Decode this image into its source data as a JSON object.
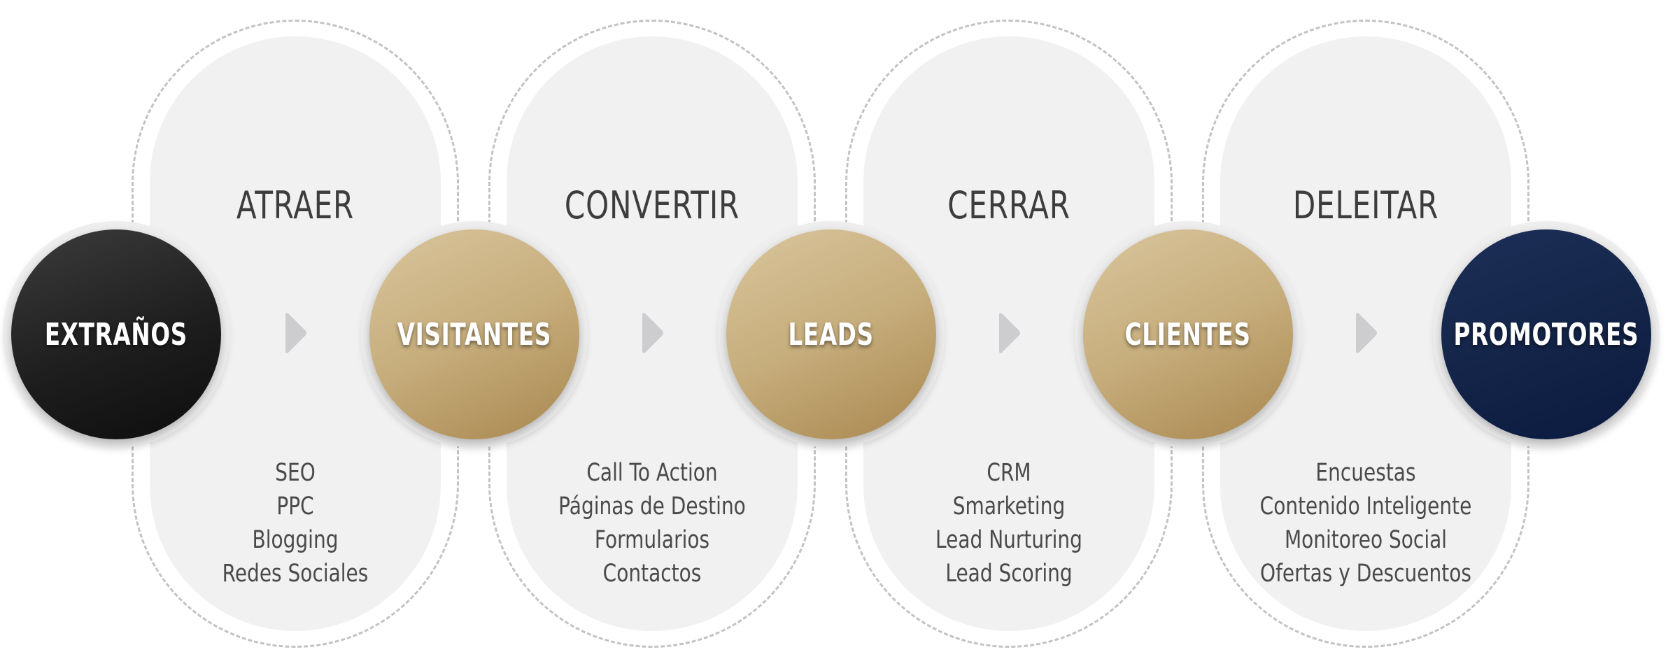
{
  "stages": [
    {
      "title": "ATRAER",
      "tactics": [
        "SEO",
        "PPC",
        "Blogging",
        "Redes Sociales"
      ]
    },
    {
      "title": "CONVERTIR",
      "tactics": [
        "Call To Action",
        "Páginas de Destino",
        "Formularios",
        "Contactos"
      ]
    },
    {
      "title": "CERRAR",
      "tactics": [
        "CRM",
        "Smarketing",
        "Lead Nurturing",
        "Lead Scoring"
      ]
    },
    {
      "title": "DELEITAR",
      "tactics": [
        "Encuestas",
        "Contenido Inteligente",
        "Monitoreo Social",
        "Ofertas y Descuentos"
      ]
    }
  ],
  "nodes": [
    {
      "label": "EXTRAÑOS",
      "style": "dark"
    },
    {
      "label": "VISITANTES",
      "style": "gold"
    },
    {
      "label": "LEADS",
      "style": "gold"
    },
    {
      "label": "CLIENTES",
      "style": "gold"
    },
    {
      "label": "PROMOTORES",
      "style": "navy"
    }
  ],
  "colors": {
    "dark": "#1e1e1e",
    "gold": "#c6ad7c",
    "navy": "#132448",
    "arrow": "#cdcdcf"
  }
}
